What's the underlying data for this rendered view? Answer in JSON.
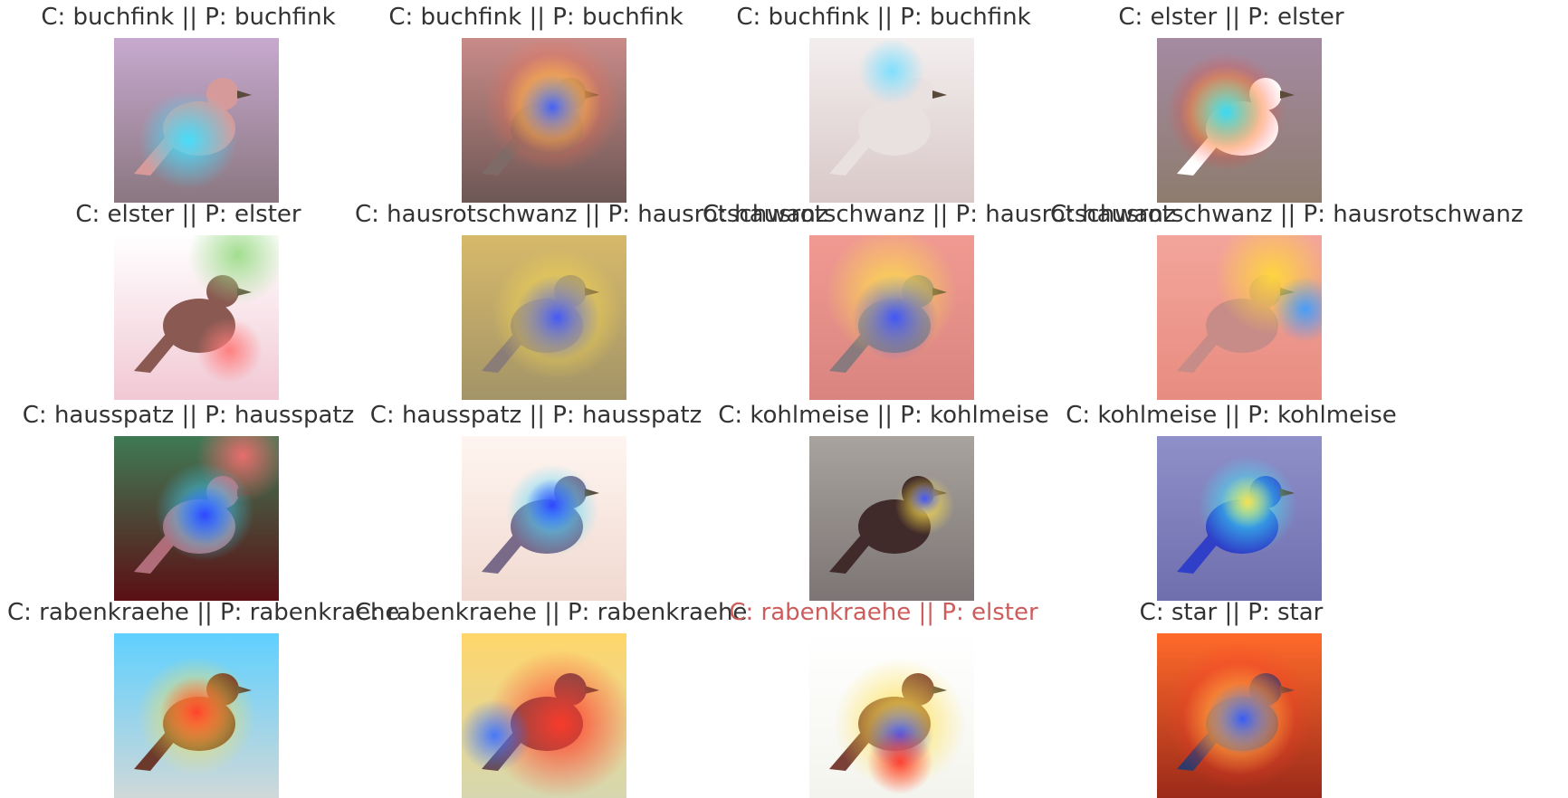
{
  "panels": [
    {
      "caption": "C: buchfink || P: buchfink",
      "correct": true,
      "thumb": {
        "bg": [
          "#c7a9cf",
          "#8a7780"
        ],
        "bird": "#d79a9a",
        "heat": [
          [
            "#3fe0ff",
            0.45,
            0.62,
            0.3
          ]
        ]
      }
    },
    {
      "caption": "C: buchfink || P: buchfink",
      "correct": true,
      "thumb": {
        "bg": [
          "#c98b88",
          "#6d5755"
        ],
        "bird": "#7e6a66",
        "heat": [
          [
            "#ff6b4a",
            0.55,
            0.4,
            0.42
          ],
          [
            "#ffe34d",
            0.55,
            0.4,
            0.3
          ],
          [
            "#3d5bff",
            0.55,
            0.42,
            0.2
          ]
        ]
      }
    },
    {
      "caption": "C: buchfink || P: buchfink",
      "correct": true,
      "thumb": {
        "bg": [
          "#f3eeee",
          "#d9c8c8"
        ],
        "bird": "#e9e0e0",
        "heat": [
          [
            "#7adfff",
            0.5,
            0.2,
            0.2
          ]
        ]
      }
    },
    {
      "caption": "C: elster || P: elster",
      "correct": true,
      "thumb": {
        "bg": [
          "#a58aa2",
          "#8d7c6e"
        ],
        "bird": "#ffffff",
        "heat": [
          [
            "#ff3a2a",
            0.42,
            0.45,
            0.36
          ],
          [
            "#ffe04a",
            0.42,
            0.45,
            0.28
          ],
          [
            "#2fd7ff",
            0.42,
            0.45,
            0.22
          ]
        ]
      }
    },
    {
      "caption": "C: elster || P: elster",
      "correct": true,
      "thumb": {
        "bg": [
          "#ffffff",
          "#f1c8d4"
        ],
        "bird": "#8a5a52",
        "heat": [
          [
            "#9ddc8a",
            0.75,
            0.12,
            0.3
          ],
          [
            "#ff7a7a",
            0.7,
            0.7,
            0.2
          ]
        ]
      }
    },
    {
      "caption": "C: hausrotschwanz || P: hausrotschwanz",
      "correct": true,
      "thumb": {
        "bg": [
          "#d7b96a",
          "#a39468"
        ],
        "bird": "#8a7d78",
        "heat": [
          [
            "#ffe04a",
            0.58,
            0.48,
            0.4
          ],
          [
            "#3a52ff",
            0.58,
            0.5,
            0.26
          ]
        ]
      }
    },
    {
      "caption": "C: hausrotschwanz || P: hausrotschwanz",
      "correct": true,
      "thumb": {
        "bg": [
          "#f09a92",
          "#d9847f"
        ],
        "bird": "#8a7a7e",
        "heat": [
          [
            "#ffe04a",
            0.5,
            0.35,
            0.4
          ],
          [
            "#3a52ff",
            0.52,
            0.5,
            0.26
          ]
        ]
      }
    },
    {
      "caption": "C: hausrotschwanz || P: hausrotschwanz",
      "correct": true,
      "thumb": {
        "bg": [
          "#f3a59b",
          "#e88c80"
        ],
        "bird": "#c78c88",
        "heat": [
          [
            "#ffd83a",
            0.7,
            0.25,
            0.35
          ],
          [
            "#3f9dff",
            0.9,
            0.45,
            0.2
          ]
        ]
      }
    },
    {
      "caption": "C: hausspatz || P: hausspatz",
      "correct": true,
      "thumb": {
        "bg": [
          "#3f7a55",
          "#5b0f15"
        ],
        "bird": "#b06c78",
        "heat": [
          [
            "#f06d6d",
            0.78,
            0.12,
            0.28
          ],
          [
            "#3dd6ff",
            0.55,
            0.46,
            0.3
          ],
          [
            "#2f3fff",
            0.55,
            0.48,
            0.18
          ]
        ]
      }
    },
    {
      "caption": "C: hausspatz || P: hausspatz",
      "correct": true,
      "thumb": {
        "bg": [
          "#fff5f0",
          "#f0d9d0"
        ],
        "bird": "#7a6a8a",
        "heat": [
          [
            "#4bd8ff",
            0.55,
            0.45,
            0.28
          ],
          [
            "#2f3fff",
            0.55,
            0.42,
            0.16
          ]
        ]
      }
    },
    {
      "caption": "C: kohlmeise || P: kohlmeise",
      "correct": true,
      "thumb": {
        "bg": [
          "#a8a39d",
          "#7c7575"
        ],
        "bird": "#402a2a",
        "heat": [
          [
            "#ffe04a",
            0.7,
            0.42,
            0.18
          ],
          [
            "#3a52ff",
            0.7,
            0.38,
            0.1
          ]
        ]
      }
    },
    {
      "caption": "C: kohlmeise || P: kohlmeise",
      "correct": true,
      "thumb": {
        "bg": [
          "#8f8fc9",
          "#6f6fae"
        ],
        "bird": "#2f3fc8",
        "heat": [
          [
            "#3bf0ff",
            0.55,
            0.42,
            0.3
          ],
          [
            "#ffe04a",
            0.55,
            0.4,
            0.16
          ]
        ]
      }
    },
    {
      "caption": "C: rabenkraehe || P: rabenkraehe",
      "correct": true,
      "thumb": {
        "bg": [
          "#5fd0ff",
          "#cfd8d8"
        ],
        "bird": "#6b3a2c",
        "heat": [
          [
            "#ffe04a",
            0.5,
            0.5,
            0.36
          ],
          [
            "#ff3a2a",
            0.5,
            0.48,
            0.22
          ]
        ]
      }
    },
    {
      "caption": "C: rabenkraehe || P: rabenkraehe",
      "correct": true,
      "thumb": {
        "bg": [
          "#ffd66a",
          "#d6d7b0"
        ],
        "bird": "#6a4a4a",
        "heat": [
          [
            "#ff3a2a",
            0.6,
            0.55,
            0.45
          ],
          [
            "#3f74ff",
            0.2,
            0.62,
            0.22
          ]
        ]
      }
    },
    {
      "caption": "C: rabenkraehe || P: elster",
      "correct": false,
      "thumb": {
        "bg": [
          "#ffffff",
          "#f4f4ee"
        ],
        "bird": "#7a4038",
        "heat": [
          [
            "#ffe04a",
            0.55,
            0.55,
            0.4
          ],
          [
            "#3a52ff",
            0.55,
            0.62,
            0.2
          ],
          [
            "#ff3a2a",
            0.55,
            0.78,
            0.2
          ]
        ]
      }
    },
    {
      "caption": "C: star || P: star",
      "correct": true,
      "thumb": {
        "bg": [
          "#ff6a2a",
          "#9b2a1a"
        ],
        "bird": "#2f3a6a",
        "heat": [
          [
            "#ff3a2a",
            0.5,
            0.5,
            0.45
          ],
          [
            "#ffe04a",
            0.5,
            0.52,
            0.34
          ],
          [
            "#2f55ff",
            0.52,
            0.52,
            0.22
          ]
        ]
      }
    }
  ]
}
